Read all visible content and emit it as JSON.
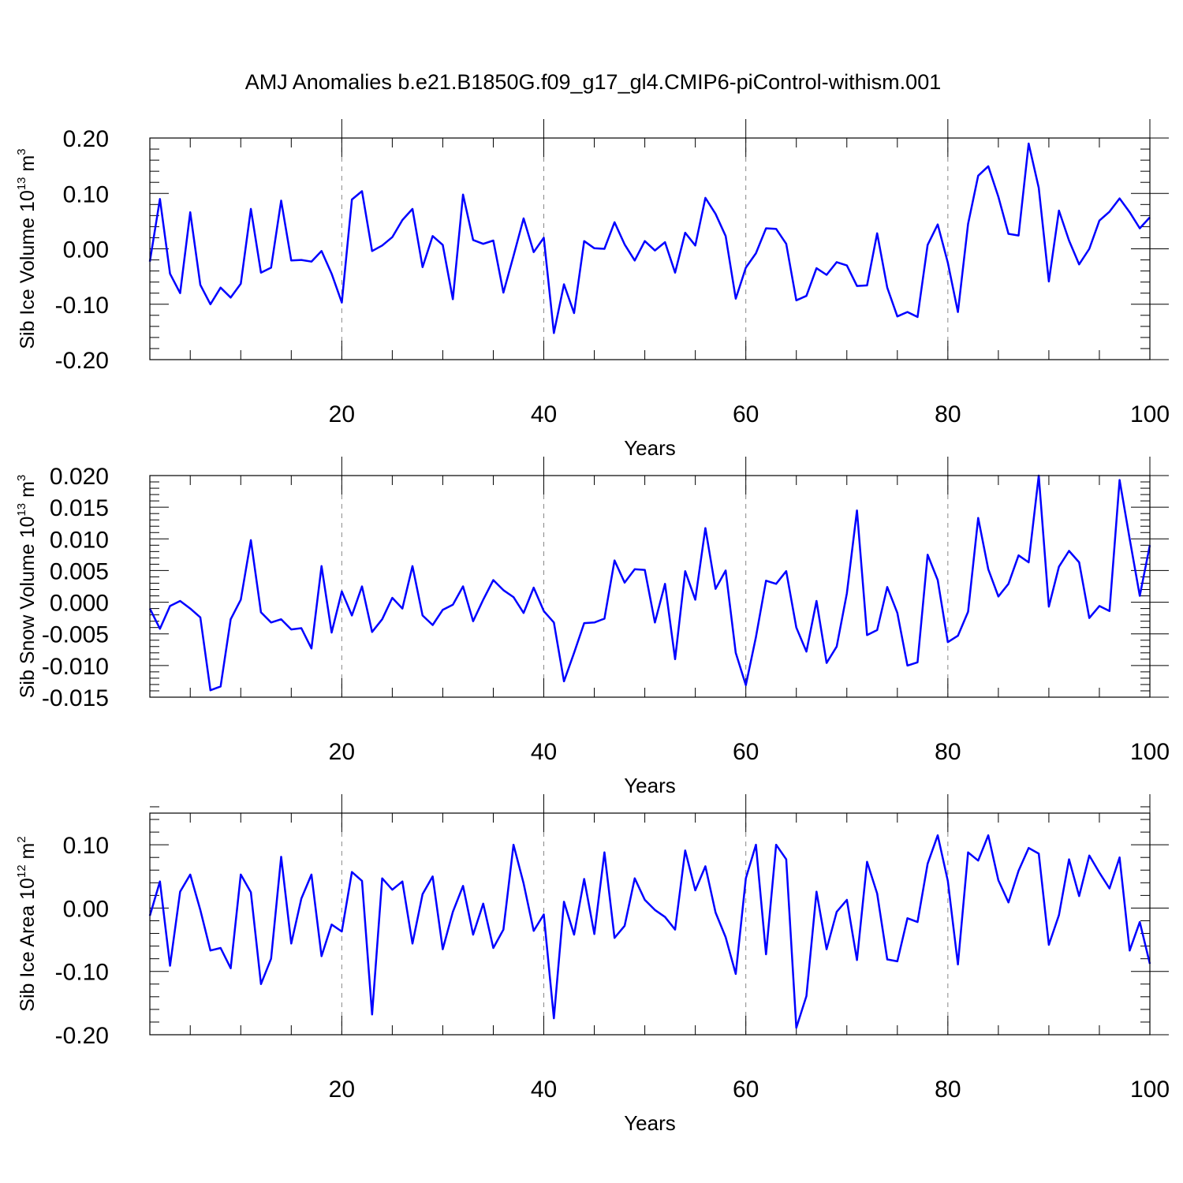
{
  "title": "AMJ Anomalies b.e21.B1850G.f09_g17_gl4.CMIP6-piControl-withism.001",
  "chart_data": [
    {
      "type": "line",
      "xlabel": "Years",
      "ylabel": {
        "base": "Sib Ice Volume 10",
        "exp": "13",
        "unit": " m",
        "unit_exp": "3"
      },
      "xlim": [
        1,
        100
      ],
      "ylim": [
        -0.2,
        0.2
      ],
      "xticks": [
        20,
        40,
        60,
        80,
        100
      ],
      "xtick_labels": [
        "20",
        "40",
        "60",
        "80",
        "100"
      ],
      "yticks": [
        -0.2,
        -0.1,
        0.0,
        0.1,
        0.2
      ],
      "ytick_labels": [
        "-0.20",
        "-0.10",
        "0.00",
        "0.10",
        "0.20"
      ],
      "grid": "vertical dashed at x ticks",
      "color": "#0000ff",
      "x": [
        1,
        2,
        3,
        4,
        5,
        6,
        7,
        8,
        9,
        10,
        11,
        12,
        13,
        14,
        15,
        16,
        17,
        18,
        19,
        20,
        21,
        22,
        23,
        24,
        25,
        26,
        27,
        28,
        29,
        30,
        31,
        32,
        33,
        34,
        35,
        36,
        37,
        38,
        39,
        40,
        41,
        42,
        43,
        44,
        45,
        46,
        47,
        48,
        49,
        50,
        51,
        52,
        53,
        54,
        55,
        56,
        57,
        58,
        59,
        60,
        61,
        62,
        63,
        64,
        65,
        66,
        67,
        68,
        69,
        70,
        71,
        72,
        73,
        74,
        75,
        76,
        77,
        78,
        79,
        80,
        81,
        82,
        83,
        84,
        85,
        86,
        87,
        88,
        89,
        90,
        91,
        92,
        93,
        94,
        95,
        96,
        97,
        98,
        99,
        100
      ],
      "values": [
        -0.023,
        0.09,
        -0.045,
        -0.08,
        0.066,
        -0.065,
        -0.1,
        -0.07,
        -0.088,
        -0.063,
        0.072,
        -0.043,
        -0.034,
        0.087,
        -0.021,
        -0.02,
        -0.023,
        -0.004,
        -0.045,
        -0.097,
        0.089,
        0.104,
        -0.004,
        0.006,
        0.021,
        0.052,
        0.072,
        -0.033,
        0.023,
        0.007,
        -0.091,
        0.098,
        0.016,
        0.009,
        0.015,
        -0.079,
        -0.013,
        0.055,
        -0.006,
        0.02,
        -0.152,
        -0.064,
        -0.116,
        0.014,
        0.001,
        0.0,
        0.048,
        0.008,
        -0.021,
        0.014,
        -0.003,
        0.012,
        -0.043,
        0.029,
        0.006,
        0.092,
        0.063,
        0.023,
        -0.09,
        -0.034,
        -0.008,
        0.037,
        0.036,
        0.009,
        -0.093,
        -0.085,
        -0.035,
        -0.047,
        -0.024,
        -0.03,
        -0.067,
        -0.066,
        0.028,
        -0.07,
        -0.122,
        -0.114,
        -0.123,
        0.007,
        0.044,
        -0.025,
        -0.114,
        0.045,
        0.132,
        0.149,
        0.094,
        0.027,
        0.024,
        0.19,
        0.11,
        -0.059,
        0.069,
        0.015,
        -0.028,
        0.0,
        0.051,
        0.067,
        0.091,
        0.066,
        0.037,
        0.057
      ]
    },
    {
      "type": "line",
      "xlabel": "Years",
      "ylabel": {
        "base": "Sib Snow Volume 10",
        "exp": "13",
        "unit": " m",
        "unit_exp": "3"
      },
      "xlim": [
        1,
        100
      ],
      "ylim": [
        -0.015,
        0.02
      ],
      "xticks": [
        20,
        40,
        60,
        80,
        100
      ],
      "xtick_labels": [
        "20",
        "40",
        "60",
        "80",
        "100"
      ],
      "yticks": [
        -0.015,
        -0.01,
        -0.005,
        0.0,
        0.005,
        0.01,
        0.015,
        0.02
      ],
      "ytick_labels": [
        "-0.015",
        "-0.010",
        "-0.005",
        "0.000",
        "0.005",
        "0.010",
        "0.015",
        "0.020"
      ],
      "grid": "vertical dashed at x ticks",
      "color": "#0000ff",
      "x": [
        1,
        2,
        3,
        4,
        5,
        6,
        7,
        8,
        9,
        10,
        11,
        12,
        13,
        14,
        15,
        16,
        17,
        18,
        19,
        20,
        21,
        22,
        23,
        24,
        25,
        26,
        27,
        28,
        29,
        30,
        31,
        32,
        33,
        34,
        35,
        36,
        37,
        38,
        39,
        40,
        41,
        42,
        43,
        44,
        45,
        46,
        47,
        48,
        49,
        50,
        51,
        52,
        53,
        54,
        55,
        56,
        57,
        58,
        59,
        60,
        61,
        62,
        63,
        64,
        65,
        66,
        67,
        68,
        69,
        70,
        71,
        72,
        73,
        74,
        75,
        76,
        77,
        78,
        79,
        80,
        81,
        82,
        83,
        84,
        85,
        86,
        87,
        88,
        89,
        90,
        91,
        92,
        93,
        94,
        95,
        96,
        97,
        98,
        99,
        100
      ],
      "values": [
        -0.001,
        -0.0042,
        -0.0006,
        0.0002,
        -0.001,
        -0.0024,
        -0.0139,
        -0.0133,
        -0.0027,
        0.0004,
        0.0098,
        -0.0016,
        -0.0032,
        -0.0027,
        -0.0043,
        -0.0041,
        -0.0073,
        0.0057,
        -0.0048,
        0.0017,
        -0.0021,
        0.0025,
        -0.0047,
        -0.0027,
        0.0007,
        -0.001,
        0.0057,
        -0.0021,
        -0.0036,
        -0.0012,
        -0.0004,
        0.0025,
        -0.003,
        0.0004,
        0.0035,
        0.0019,
        0.0008,
        -0.0017,
        0.0023,
        -0.0014,
        -0.0032,
        -0.0125,
        -0.008,
        -0.0033,
        -0.0032,
        -0.0026,
        0.0066,
        0.0031,
        0.0052,
        0.0051,
        -0.0032,
        0.0029,
        -0.009,
        0.0049,
        0.0004,
        0.0117,
        0.0021,
        0.005,
        -0.008,
        -0.0131,
        -0.0055,
        0.0034,
        0.0029,
        0.0049,
        -0.004,
        -0.0078,
        0.0002,
        -0.0096,
        -0.007,
        0.0014,
        0.0145,
        -0.0052,
        -0.0044,
        0.0024,
        -0.0017,
        -0.01,
        -0.0095,
        0.0075,
        0.0035,
        -0.0063,
        -0.0053,
        -0.0015,
        0.0133,
        0.0052,
        0.0009,
        0.0029,
        0.0074,
        0.0063,
        0.02,
        -0.0007,
        0.0056,
        0.0081,
        0.0063,
        -0.0025,
        -0.0006,
        -0.0014,
        0.0193,
        0.01,
        0.001,
        0.009
      ]
    },
    {
      "type": "line",
      "xlabel": "Years",
      "ylabel": {
        "base": "Sib Ice Area 10",
        "exp": "12",
        "unit": " m",
        "unit_exp": "2"
      },
      "xlim": [
        1,
        100
      ],
      "ylim": [
        -0.2,
        0.15
      ],
      "xticks": [
        20,
        40,
        60,
        80,
        100
      ],
      "xtick_labels": [
        "20",
        "40",
        "60",
        "80",
        "100"
      ],
      "yticks": [
        -0.2,
        -0.1,
        0.0,
        0.1
      ],
      "ytick_labels": [
        "-0.20",
        "-0.10",
        "0.00",
        "0.10"
      ],
      "grid": "vertical dashed at x ticks",
      "color": "#0000ff",
      "x": [
        1,
        2,
        3,
        4,
        5,
        6,
        7,
        8,
        9,
        10,
        11,
        12,
        13,
        14,
        15,
        16,
        17,
        18,
        19,
        20,
        21,
        22,
        23,
        24,
        25,
        26,
        27,
        28,
        29,
        30,
        31,
        32,
        33,
        34,
        35,
        36,
        37,
        38,
        39,
        40,
        41,
        42,
        43,
        44,
        45,
        46,
        47,
        48,
        49,
        50,
        51,
        52,
        53,
        54,
        55,
        56,
        57,
        58,
        59,
        60,
        61,
        62,
        63,
        64,
        65,
        66,
        67,
        68,
        69,
        70,
        71,
        72,
        73,
        74,
        75,
        76,
        77,
        78,
        79,
        80,
        81,
        82,
        83,
        84,
        85,
        86,
        87,
        88,
        89,
        90,
        91,
        92,
        93,
        94,
        95,
        96,
        97,
        98,
        99,
        100
      ],
      "values": [
        -0.012,
        0.042,
        -0.091,
        0.026,
        0.053,
        -0.003,
        -0.067,
        -0.063,
        -0.095,
        0.053,
        0.025,
        -0.12,
        -0.08,
        0.081,
        -0.056,
        0.015,
        0.053,
        -0.076,
        -0.026,
        -0.037,
        0.057,
        0.043,
        -0.168,
        0.047,
        0.029,
        0.042,
        -0.056,
        0.022,
        0.05,
        -0.065,
        -0.006,
        0.035,
        -0.042,
        0.007,
        -0.063,
        -0.034,
        0.1,
        0.039,
        -0.036,
        -0.01,
        -0.174,
        0.01,
        -0.042,
        0.046,
        -0.041,
        0.088,
        -0.047,
        -0.028,
        0.047,
        0.013,
        -0.003,
        -0.014,
        -0.034,
        0.091,
        0.028,
        0.066,
        -0.007,
        -0.046,
        -0.104,
        0.047,
        0.1,
        -0.073,
        0.1,
        0.077,
        -0.189,
        -0.139,
        0.026,
        -0.065,
        -0.006,
        0.013,
        -0.082,
        0.073,
        0.023,
        -0.081,
        -0.084,
        -0.016,
        -0.022,
        0.07,
        0.115,
        0.043,
        -0.089,
        0.088,
        0.075,
        0.115,
        0.044,
        0.009,
        0.059,
        0.095,
        0.086,
        -0.058,
        -0.011,
        0.077,
        0.019,
        0.083,
        0.056,
        0.031,
        0.08,
        -0.067,
        -0.022,
        -0.088
      ]
    }
  ]
}
